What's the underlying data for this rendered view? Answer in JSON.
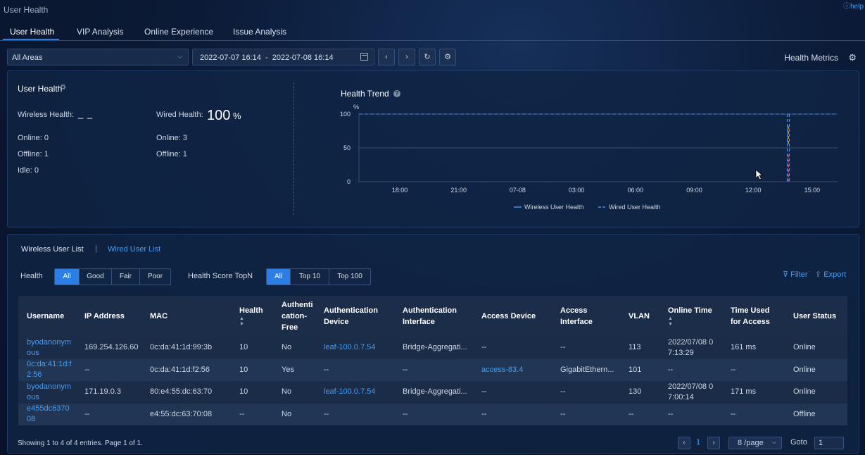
{
  "page": {
    "title": "User Health",
    "help": "help"
  },
  "tabs": [
    {
      "label": "User Health"
    },
    {
      "label": "VIP Analysis"
    },
    {
      "label": "Online Experience"
    },
    {
      "label": "Issue Analysis"
    }
  ],
  "toolbar": {
    "area": "All Areas",
    "date_range": "2022-07-07 16:14  -  2022-07-08 16:14",
    "prev": "‹",
    "next": "›",
    "refresh": "↻",
    "settings": "⚙",
    "health_metrics": "Health Metrics"
  },
  "summary": {
    "title": "User Health",
    "wireless_label": "Wireless Health:",
    "wireless_value": "_ _",
    "wired_label": "Wired Health:",
    "wired_value": "100",
    "wired_unit": "%",
    "wireless_online": "Online: 0",
    "wireless_offline": "Offline: 1",
    "wireless_idle": "Idle: 0",
    "wired_online": "Online: 3",
    "wired_offline": "Offline: 1"
  },
  "chart_data": {
    "type": "line",
    "title": "Health Trend",
    "ylabel": "%",
    "ylim": [
      0,
      100
    ],
    "yticks": [
      "100",
      "50",
      "0"
    ],
    "xticks": [
      "18:00",
      "21:00",
      "07-08",
      "03:00",
      "06:00",
      "09:00",
      "12:00",
      "15:00"
    ],
    "legend": "bottom",
    "series": [
      {
        "name": "Wireless User Health",
        "style": "solid",
        "color": "#4a8ee8",
        "values": []
      },
      {
        "name": "Wired User Health",
        "style": "dashed",
        "color": "#4a8ee8",
        "values": [
          100,
          100,
          100,
          100,
          100,
          100,
          100,
          100,
          100
        ]
      }
    ]
  },
  "user_list": {
    "tab_wireless": "Wireless User List",
    "tab_separator": "|",
    "tab_wired": "Wired User List",
    "health_label": "Health",
    "health_options": [
      "All",
      "Good",
      "Fair",
      "Poor"
    ],
    "topn_label": "Health Score TopN",
    "topn_options": [
      "All",
      "Top 10",
      "Top 100"
    ],
    "filter": "Filter",
    "export": "Export",
    "columns": [
      "Username",
      "IP Address",
      "MAC",
      "Health",
      "Authenti cation-Free",
      "Authentication Device",
      "Authentication Interface",
      "Access Device",
      "Access Interface",
      "VLAN",
      "Online Time",
      "Time Used for Access",
      "User Status"
    ],
    "rows": [
      [
        "byodanonymous",
        "169.254.126.60",
        "0c:da:41:1d:99:3b",
        "10",
        "No",
        "leaf-100.0.7.54",
        "Bridge-Aggregati...",
        "--",
        "--",
        "113",
        "2022/07/08 07:13:29",
        "161 ms",
        "Online"
      ],
      [
        "0c:da:41:1d:f2:56",
        "--",
        "0c:da:41:1d:f2:56",
        "10",
        "Yes",
        "--",
        "--",
        "access-83.4",
        "GigabitEthern...",
        "101",
        "--",
        "--",
        "Online"
      ],
      [
        "byodanonymous",
        "171.19.0.3",
        "80:e4:55:dc:63:70",
        "10",
        "No",
        "leaf-100.0.7.54",
        "Bridge-Aggregati...",
        "--",
        "--",
        "130",
        "2022/07/08 07:00:14",
        "171 ms",
        "Online"
      ],
      [
        "e455dc637008",
        "--",
        "e4:55:dc:63:70:08",
        "--",
        "No",
        "--",
        "--",
        "--",
        "--",
        "--",
        "--",
        "--",
        "Offline"
      ]
    ],
    "footer": "Showing 1 to 4 of 4 entries.  Page 1 of 1.",
    "page": "1",
    "per_page": "8 /page",
    "goto_label": "Goto",
    "goto_value": "1"
  },
  "colors": {
    "accent": "#2b7ee6",
    "link": "#4a9cf0"
  }
}
